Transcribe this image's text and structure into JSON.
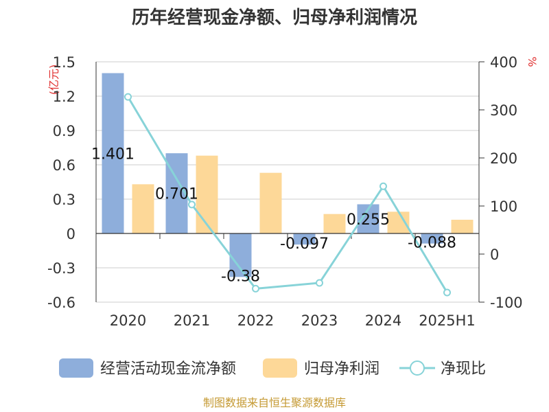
{
  "chart_data": {
    "type": "bar",
    "title": "历年经营现金净额、归母净利润情况",
    "categories": [
      "2020",
      "2021",
      "2022",
      "2023",
      "2024",
      "2025H1"
    ],
    "y_left": {
      "unit": "(亿元)",
      "ticks": [
        "1.5",
        "1.2",
        "0.9",
        "0.6",
        "0.3",
        "0",
        "-0.3",
        "-0.6"
      ],
      "range": [
        -0.6,
        1.5
      ]
    },
    "y_right": {
      "unit": "%",
      "ticks": [
        "400",
        "300",
        "200",
        "100",
        "0",
        "-100"
      ],
      "range": [
        -100,
        400
      ]
    },
    "series": [
      {
        "name": "经营活动现金流净额",
        "type": "bar",
        "axis": "left",
        "color": "#8eaedb",
        "values": [
          1.401,
          0.701,
          -0.38,
          -0.097,
          0.255,
          -0.088
        ],
        "labels": [
          "1.401",
          "0.701",
          "-0.38",
          "-0.097",
          "0.255",
          "-0.088"
        ]
      },
      {
        "name": "归母净利润",
        "type": "bar",
        "axis": "left",
        "color": "#fdd898",
        "values": [
          0.43,
          0.68,
          0.53,
          0.17,
          0.19,
          0.12
        ]
      },
      {
        "name": "净现比",
        "type": "line",
        "axis": "right",
        "color": "#87d3d8",
        "values": [
          327,
          103,
          -72,
          -60,
          141,
          -80
        ]
      }
    ],
    "legend_position": "bottom",
    "grid": true
  },
  "source": "制图数据来自恒生聚源数据库",
  "colors": {
    "unit_text": "#e03030",
    "source_text": "#c59a34",
    "axis": "#333333",
    "grid": "#cccccc"
  }
}
